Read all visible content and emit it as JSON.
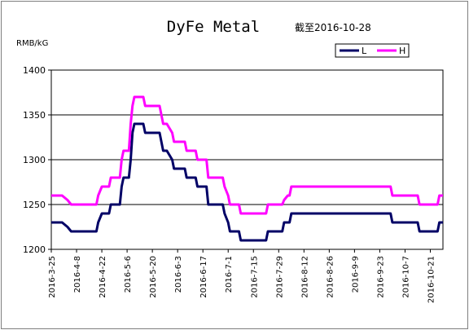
{
  "chart_data": {
    "type": "line",
    "title": "DyFe Metal",
    "subtitle": "截至2016-10-28",
    "ylabel": "RMB/kG",
    "ylim": [
      1200,
      1400
    ],
    "yticks": [
      1200,
      1250,
      1300,
      1350,
      1400
    ],
    "grid": true,
    "legend_position": "top-right",
    "x_start": "2016-3-25",
    "x_end": "2016-10-28",
    "xticks": [
      "2016-3-25",
      "2016-4-8",
      "2016-4-22",
      "2016-5-6",
      "2016-5-20",
      "2016-6-3",
      "2016-6-17",
      "2016-7-1",
      "2016-7-15",
      "2016-7-29",
      "2016-8-12",
      "2016-8-26",
      "2016-9-9",
      "2016-9-23",
      "2016-10-7",
      "2016-10-21"
    ],
    "series": [
      {
        "name": "L",
        "color": "#000066",
        "points": [
          [
            "2016-3-25",
            1230
          ],
          [
            "2016-3-31",
            1230
          ],
          [
            "2016-4-3",
            1225
          ],
          [
            "2016-4-5",
            1220
          ],
          [
            "2016-4-19",
            1220
          ],
          [
            "2016-4-20",
            1230
          ],
          [
            "2016-4-22",
            1240
          ],
          [
            "2016-4-26",
            1240
          ],
          [
            "2016-4-27",
            1250
          ],
          [
            "2016-5-2",
            1250
          ],
          [
            "2016-5-3",
            1270
          ],
          [
            "2016-5-4",
            1280
          ],
          [
            "2016-5-7",
            1280
          ],
          [
            "2016-5-8",
            1300
          ],
          [
            "2016-5-9",
            1330
          ],
          [
            "2016-5-10",
            1340
          ],
          [
            "2016-5-15",
            1340
          ],
          [
            "2016-5-16",
            1330
          ],
          [
            "2016-5-24",
            1330
          ],
          [
            "2016-5-25",
            1320
          ],
          [
            "2016-5-26",
            1310
          ],
          [
            "2016-5-28",
            1310
          ],
          [
            "2016-5-31",
            1300
          ],
          [
            "2016-6-1",
            1290
          ],
          [
            "2016-6-7",
            1290
          ],
          [
            "2016-6-8",
            1280
          ],
          [
            "2016-6-13",
            1280
          ],
          [
            "2016-6-14",
            1270
          ],
          [
            "2016-6-19",
            1270
          ],
          [
            "2016-6-20",
            1250
          ],
          [
            "2016-6-28",
            1250
          ],
          [
            "2016-6-29",
            1240
          ],
          [
            "2016-7-1",
            1230
          ],
          [
            "2016-7-2",
            1220
          ],
          [
            "2016-7-7",
            1220
          ],
          [
            "2016-7-8",
            1210
          ],
          [
            "2016-7-22",
            1210
          ],
          [
            "2016-7-23",
            1220
          ],
          [
            "2016-7-31",
            1220
          ],
          [
            "2016-8-1",
            1230
          ],
          [
            "2016-8-4",
            1230
          ],
          [
            "2016-8-5",
            1240
          ],
          [
            "2016-9-29",
            1240
          ],
          [
            "2016-9-30",
            1230
          ],
          [
            "2016-10-14",
            1230
          ],
          [
            "2016-10-15",
            1220
          ],
          [
            "2016-10-25",
            1220
          ],
          [
            "2016-10-26",
            1230
          ],
          [
            "2016-10-28",
            1230
          ]
        ]
      },
      {
        "name": "H",
        "color": "#ff00ff",
        "points": [
          [
            "2016-3-25",
            1260
          ],
          [
            "2016-3-31",
            1260
          ],
          [
            "2016-4-3",
            1255
          ],
          [
            "2016-4-5",
            1250
          ],
          [
            "2016-4-19",
            1250
          ],
          [
            "2016-4-20",
            1260
          ],
          [
            "2016-4-22",
            1270
          ],
          [
            "2016-4-26",
            1270
          ],
          [
            "2016-4-27",
            1280
          ],
          [
            "2016-5-2",
            1280
          ],
          [
            "2016-5-3",
            1300
          ],
          [
            "2016-5-4",
            1310
          ],
          [
            "2016-5-7",
            1310
          ],
          [
            "2016-5-8",
            1340
          ],
          [
            "2016-5-9",
            1360
          ],
          [
            "2016-5-10",
            1370
          ],
          [
            "2016-5-15",
            1370
          ],
          [
            "2016-5-16",
            1360
          ],
          [
            "2016-5-24",
            1360
          ],
          [
            "2016-5-25",
            1350
          ],
          [
            "2016-5-26",
            1340
          ],
          [
            "2016-5-28",
            1340
          ],
          [
            "2016-5-31",
            1330
          ],
          [
            "2016-6-1",
            1320
          ],
          [
            "2016-6-7",
            1320
          ],
          [
            "2016-6-8",
            1310
          ],
          [
            "2016-6-13",
            1310
          ],
          [
            "2016-6-14",
            1300
          ],
          [
            "2016-6-19",
            1300
          ],
          [
            "2016-6-20",
            1280
          ],
          [
            "2016-6-28",
            1280
          ],
          [
            "2016-6-29",
            1270
          ],
          [
            "2016-7-1",
            1260
          ],
          [
            "2016-7-2",
            1250
          ],
          [
            "2016-7-7",
            1250
          ],
          [
            "2016-7-8",
            1240
          ],
          [
            "2016-7-22",
            1240
          ],
          [
            "2016-7-23",
            1250
          ],
          [
            "2016-7-31",
            1250
          ],
          [
            "2016-8-1",
            1255
          ],
          [
            "2016-8-3",
            1260
          ],
          [
            "2016-8-4",
            1260
          ],
          [
            "2016-8-5",
            1270
          ],
          [
            "2016-9-29",
            1270
          ],
          [
            "2016-9-30",
            1260
          ],
          [
            "2016-10-14",
            1260
          ],
          [
            "2016-10-15",
            1250
          ],
          [
            "2016-10-25",
            1250
          ],
          [
            "2016-10-26",
            1260
          ],
          [
            "2016-10-28",
            1260
          ]
        ]
      }
    ]
  }
}
